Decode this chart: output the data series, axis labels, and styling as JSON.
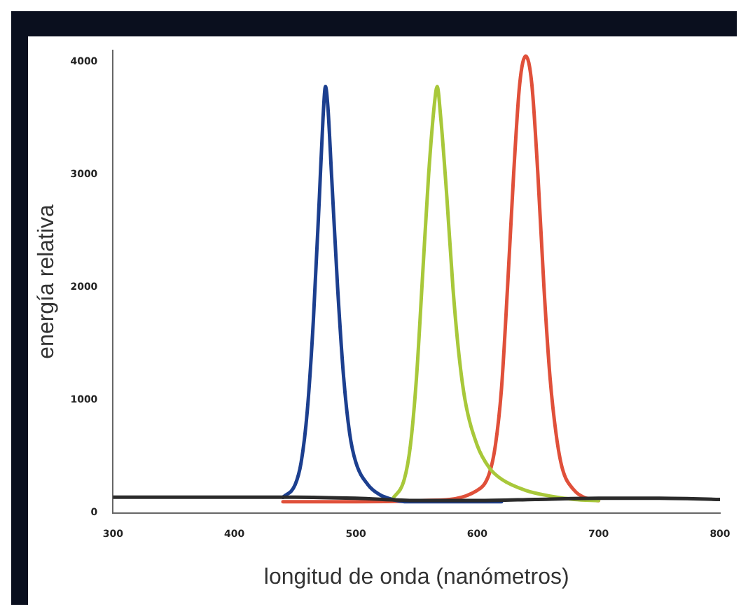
{
  "chart_data": {
    "type": "line",
    "xlabel": "longitud de onda (nanómetros)",
    "ylabel": "energía relativa",
    "xlim": [
      300,
      800
    ],
    "xticks": [
      300,
      400,
      500,
      600,
      700,
      800
    ],
    "ylim": [
      0,
      4100
    ],
    "yticks": [
      0,
      1000,
      2000,
      3000,
      4000
    ],
    "grid": false,
    "legend": false,
    "marker": "none",
    "line_style": "solid",
    "series": [
      {
        "color": "#2b2b2b",
        "x": [
          300,
          400,
          450,
          500,
          550,
          600,
          650,
          700,
          750,
          800
        ],
        "values": [
          140,
          140,
          140,
          130,
          110,
          110,
          120,
          130,
          130,
          120
        ]
      },
      {
        "color": "#1c3f8f",
        "x": [
          440,
          450,
          455,
          460,
          465,
          470,
          473,
          475,
          477,
          480,
          485,
          490,
          495,
          500,
          510,
          520,
          530,
          540,
          560,
          600,
          620
        ],
        "values": [
          140,
          250,
          450,
          900,
          1700,
          2800,
          3500,
          3780,
          3600,
          3000,
          2000,
          1200,
          700,
          450,
          250,
          160,
          120,
          100,
          100,
          100,
          100
        ]
      },
      {
        "color": "#a8c83a",
        "x": [
          530,
          540,
          545,
          550,
          555,
          560,
          565,
          567,
          570,
          575,
          580,
          585,
          590,
          600,
          610,
          620,
          640,
          660,
          680,
          700
        ],
        "values": [
          120,
          300,
          600,
          1200,
          2100,
          3000,
          3650,
          3780,
          3500,
          2800,
          2000,
          1400,
          1000,
          600,
          400,
          300,
          200,
          150,
          120,
          110
        ]
      },
      {
        "color": "#e0503a",
        "x": [
          440,
          500,
          560,
          600,
          610,
          615,
          620,
          625,
          630,
          635,
          640,
          645,
          650,
          655,
          660,
          665,
          670,
          680,
          690,
          700
        ],
        "values": [
          100,
          100,
          110,
          200,
          350,
          600,
          1100,
          2000,
          3000,
          3800,
          4050,
          3800,
          3000,
          2000,
          1200,
          700,
          400,
          200,
          130,
          110
        ]
      }
    ]
  }
}
